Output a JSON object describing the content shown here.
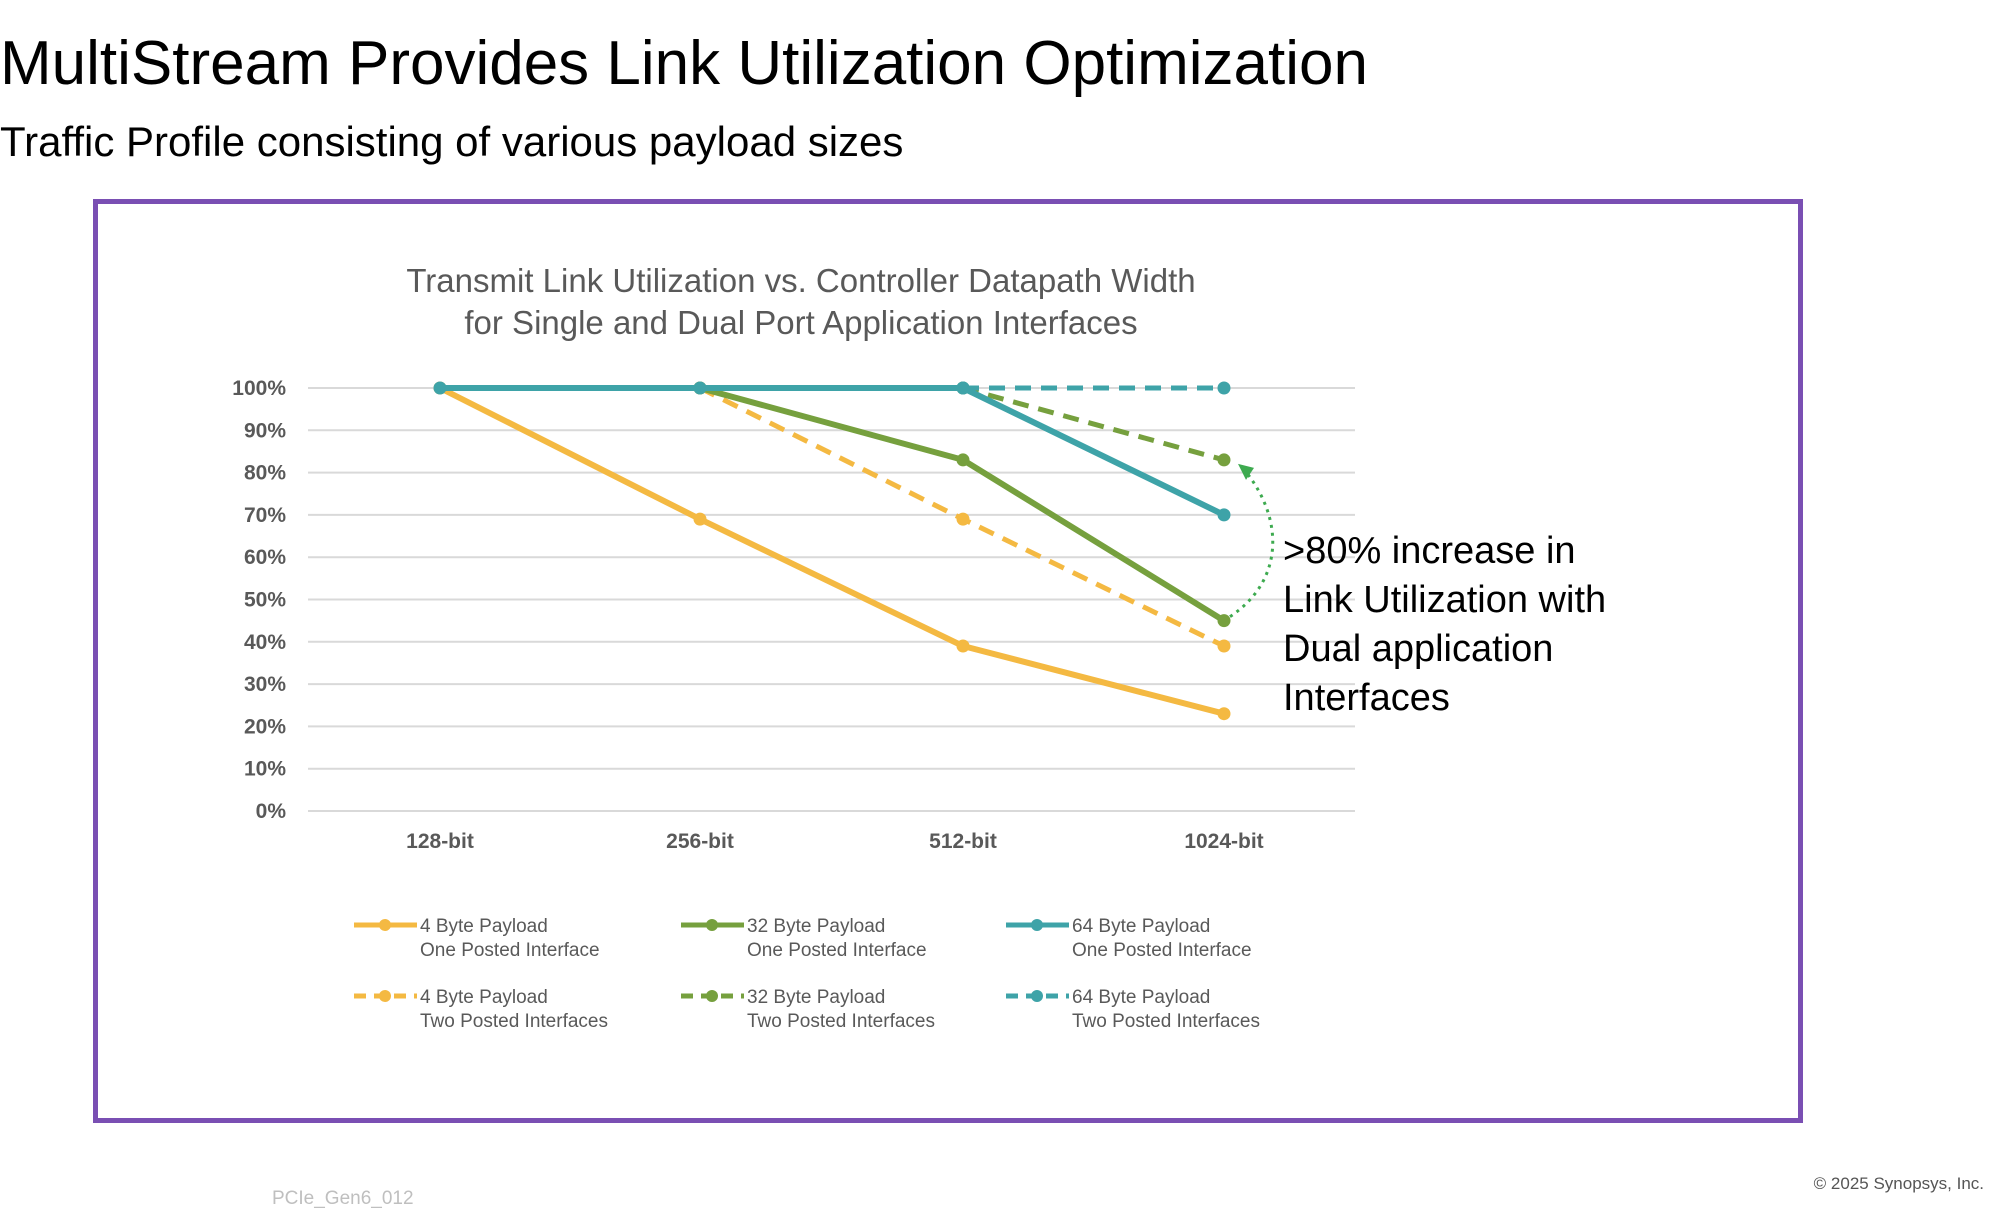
{
  "slide": {
    "title": "MultiStream Provides Link Utilization Optimization",
    "subtitle": "Traffic Profile consisting of various payload sizes",
    "footer_id": "PCIe_Gen6_012",
    "copyright": "© 2025 Synopsys, Inc.",
    "frame_color": "#7a4fb3"
  },
  "chart_data": {
    "type": "line",
    "title": [
      "Transmit Link Utilization vs. Controller Datapath Width",
      "for Single and Dual Port Application Interfaces"
    ],
    "categories": [
      "128-bit",
      "256-bit",
      "512-bit",
      "1024-bit"
    ],
    "ylim": [
      0,
      100
    ],
    "yticks": [
      "0%",
      "10%",
      "20%",
      "30%",
      "40%",
      "50%",
      "60%",
      "70%",
      "80%",
      "90%",
      "100%"
    ],
    "grid": true,
    "legend_placement": "bottom",
    "series": [
      {
        "name": [
          "4 Byte Payload",
          "One Posted Interface"
        ],
        "values": [
          100,
          69,
          39,
          23
        ],
        "color": "#f4b942",
        "dashed": false
      },
      {
        "name": [
          "32 Byte Payload",
          "One Posted Interface"
        ],
        "values": [
          null,
          100,
          83,
          45
        ],
        "color": "#76a03e",
        "dashed": false
      },
      {
        "name": [
          "64 Byte Payload",
          "One Posted Interface"
        ],
        "values": [
          100,
          100,
          100,
          70
        ],
        "color": "#3ea3a8",
        "dashed": false
      },
      {
        "name": [
          "4 Byte Payload",
          "Two Posted Interfaces"
        ],
        "values": [
          null,
          100,
          69,
          39
        ],
        "color": "#f4b942",
        "dashed": true
      },
      {
        "name": [
          "32 Byte Payload",
          "Two Posted Interfaces"
        ],
        "values": [
          null,
          null,
          100,
          83
        ],
        "color": "#76a03e",
        "dashed": true
      },
      {
        "name": [
          "64 Byte Payload",
          "Two Posted Interfaces"
        ],
        "values": [
          null,
          null,
          100,
          100
        ],
        "color": "#3ea3a8",
        "dashed": true
      }
    ],
    "annotation": {
      "lines": [
        ">80% increase in",
        "Link Utilization with",
        "Dual application",
        "Interfaces"
      ],
      "arrow_from": {
        "category": "1024-bit",
        "value": 45
      },
      "arrow_to": {
        "category": "1024-bit",
        "value": 83
      },
      "arrow_color": "#3daa4f"
    }
  }
}
